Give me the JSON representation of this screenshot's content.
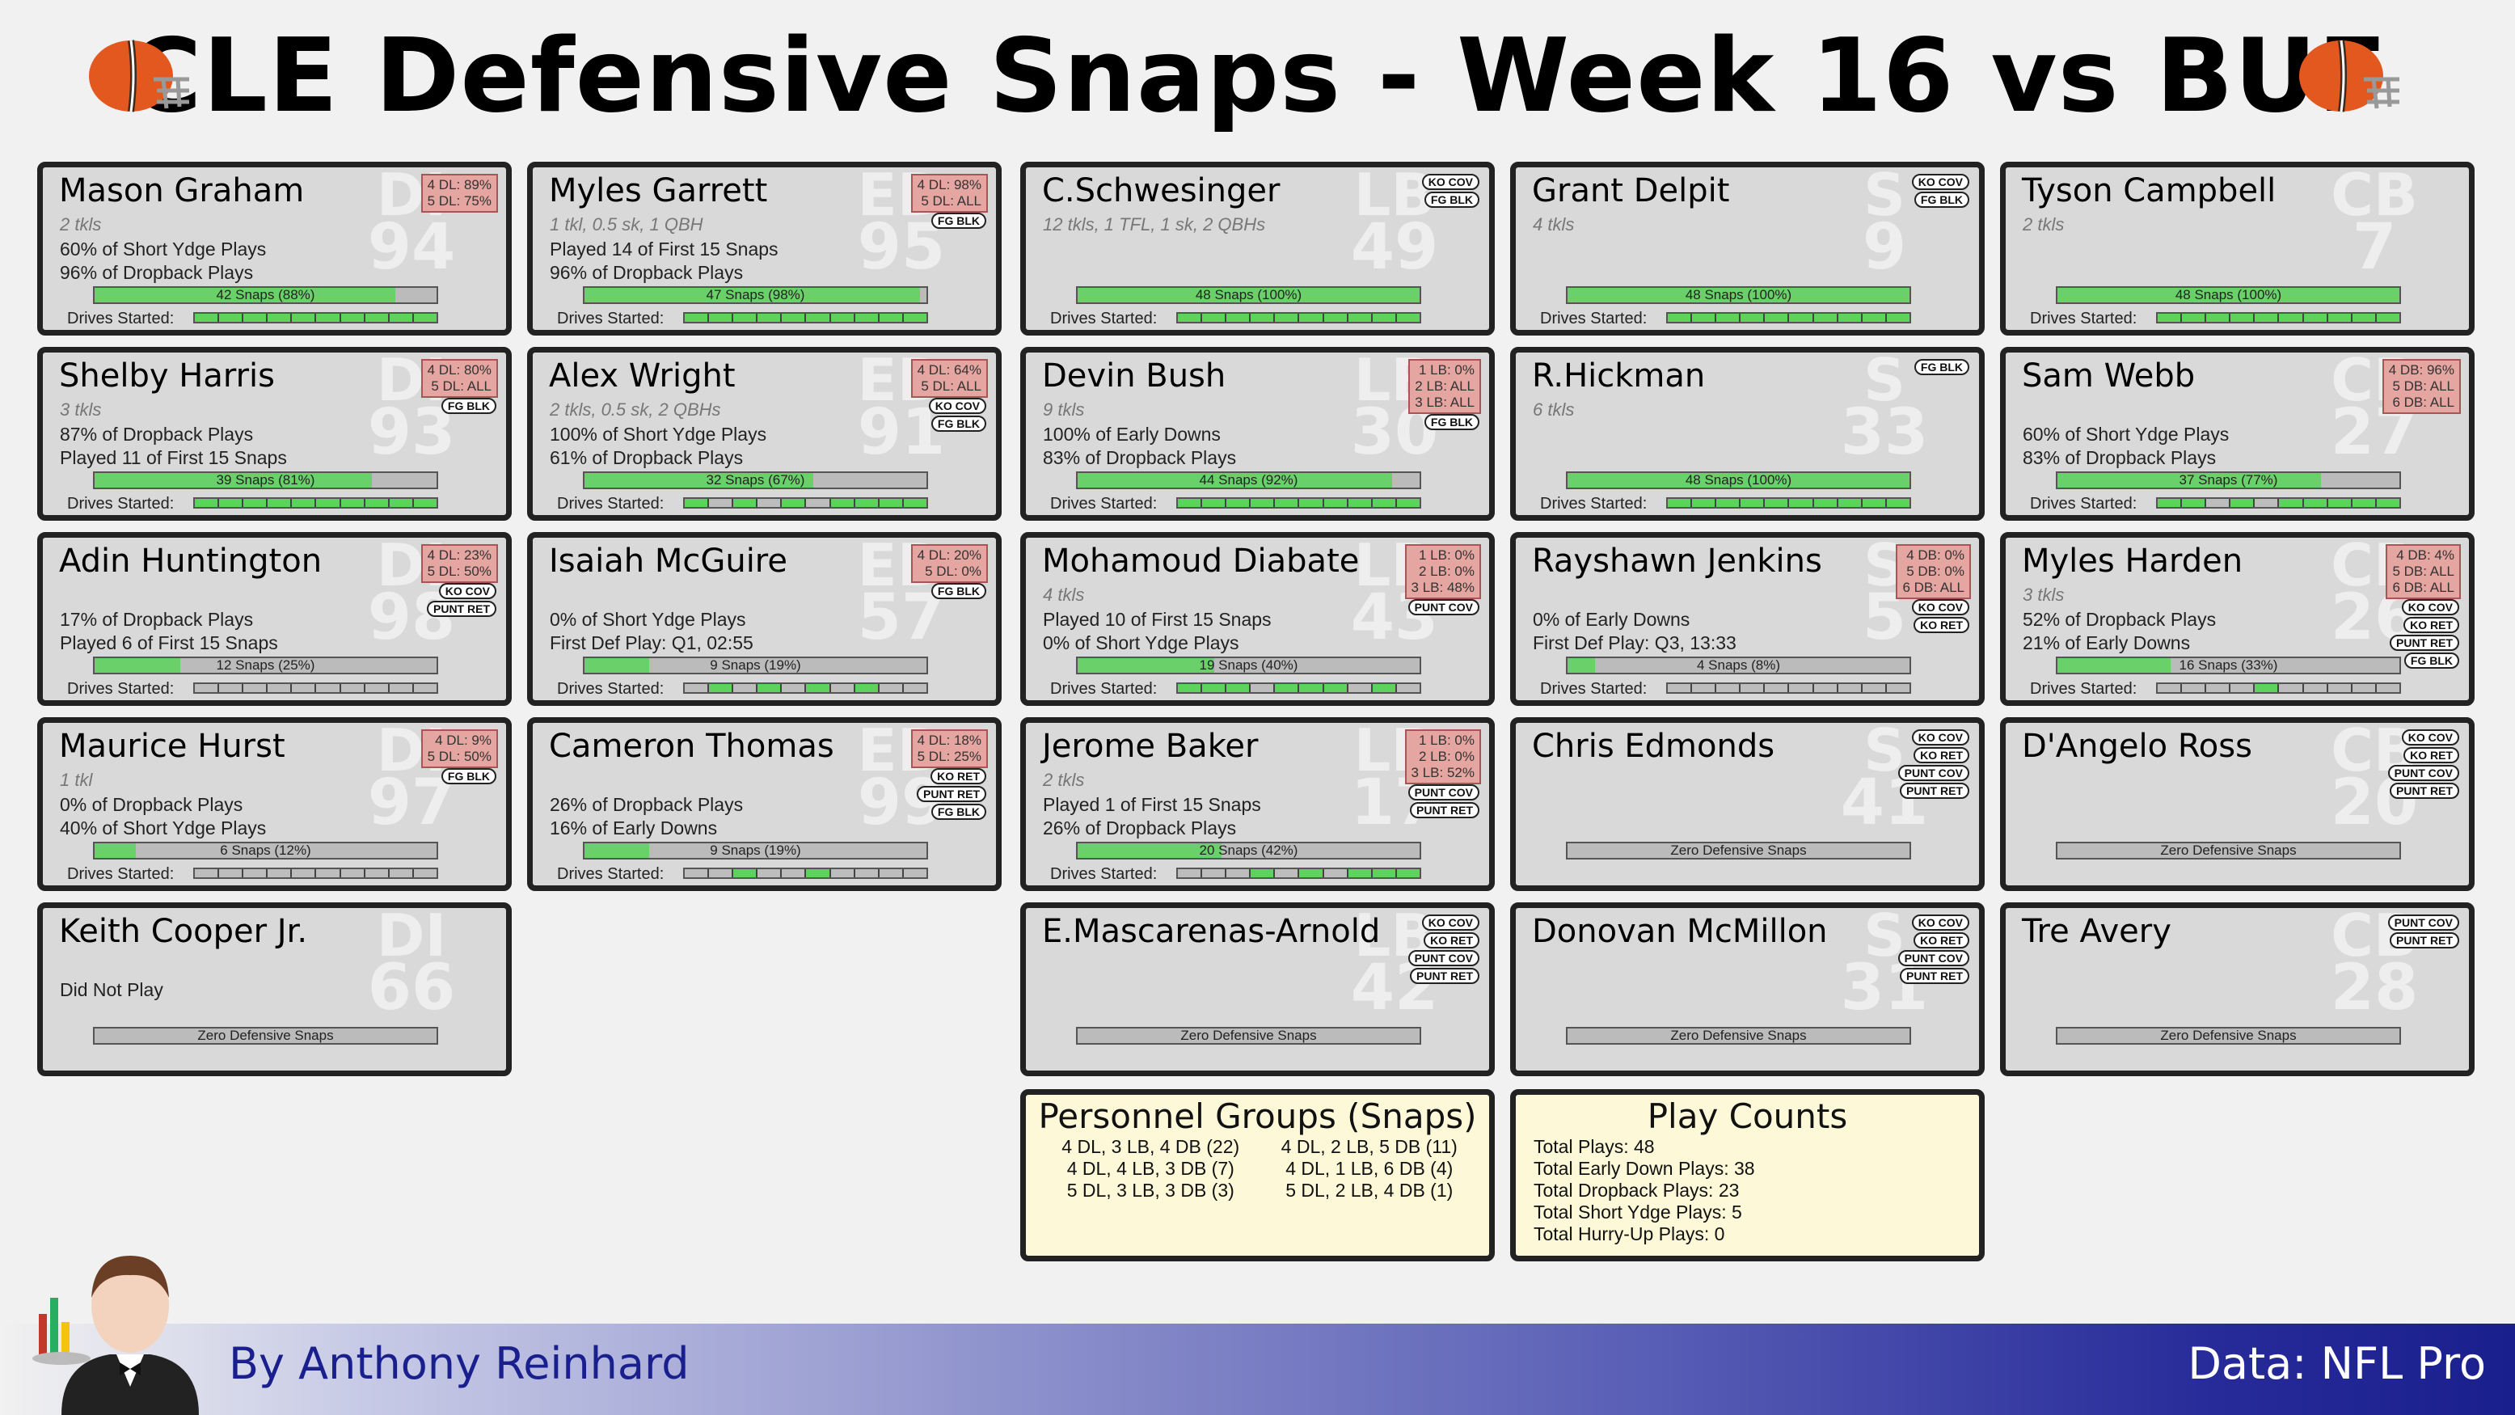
{
  "title": "CLE Defensive Snaps - Week 16 vs BUF",
  "drives_label": "Drives Started:",
  "players": [
    {
      "name": "Mason Graham",
      "pos": "DI",
      "num": "94",
      "tkls": "2 tkls",
      "line1": "60% of Short Ydge Plays",
      "line2": "96% of Dropback Plays",
      "snaps": "42 Snaps (88%)",
      "snap_pct": 88,
      "pct": [
        "4 DL: 89%",
        "5 DL: 75%"
      ],
      "badges": [],
      "drives": [
        1,
        1,
        1,
        1,
        1,
        1,
        1,
        1,
        1,
        1
      ]
    },
    {
      "name": "Myles Garrett",
      "pos": "ED",
      "num": "95",
      "tkls": "1 tkl, 0.5 sk, 1 QBH",
      "line1": "Played 14 of First 15 Snaps",
      "line2": "96% of Dropback Plays",
      "snaps": "47 Snaps (98%)",
      "snap_pct": 98,
      "pct": [
        "4 DL: 98%",
        "5 DL: ALL"
      ],
      "badges": [
        "FG BLK"
      ],
      "drives": [
        1,
        1,
        1,
        1,
        1,
        1,
        1,
        1,
        1,
        1
      ]
    },
    {
      "name": "C.Schwesinger",
      "pos": "LB",
      "num": "49",
      "tkls": "12 tkls, 1 TFL, 1 sk, 2 QBHs",
      "line1": "",
      "line2": "",
      "snaps": "48 Snaps (100%)",
      "snap_pct": 100,
      "pct": [],
      "badges": [
        "KO COV",
        "FG BLK"
      ],
      "drives": [
        1,
        1,
        1,
        1,
        1,
        1,
        1,
        1,
        1,
        1
      ]
    },
    {
      "name": "Grant Delpit",
      "pos": "S",
      "num": "9",
      "tkls": "4 tkls",
      "line1": "",
      "line2": "",
      "snaps": "48 Snaps (100%)",
      "snap_pct": 100,
      "pct": [],
      "badges": [
        "KO COV",
        "FG BLK"
      ],
      "drives": [
        1,
        1,
        1,
        1,
        1,
        1,
        1,
        1,
        1,
        1
      ]
    },
    {
      "name": "Tyson Campbell",
      "pos": "CB",
      "num": "7",
      "tkls": "2 tkls",
      "line1": "",
      "line2": "",
      "snaps": "48 Snaps (100%)",
      "snap_pct": 100,
      "pct": [],
      "badges": [],
      "drives": [
        1,
        1,
        1,
        1,
        1,
        1,
        1,
        1,
        1,
        1
      ]
    },
    {
      "name": "Shelby Harris",
      "pos": "DI",
      "num": "93",
      "tkls": "3 tkls",
      "line1": "87% of Dropback Plays",
      "line2": "Played 11 of First 15 Snaps",
      "snaps": "39 Snaps (81%)",
      "snap_pct": 81,
      "pct": [
        "4 DL: 80%",
        "5 DL: ALL"
      ],
      "badges": [
        "FG BLK"
      ],
      "drives": [
        1,
        1,
        1,
        1,
        1,
        1,
        1,
        1,
        1,
        1
      ]
    },
    {
      "name": "Alex Wright",
      "pos": "ED",
      "num": "91",
      "tkls": "2 tkls, 0.5 sk, 2 QBHs",
      "line1": "100% of Short Ydge Plays",
      "line2": "61% of Dropback Plays",
      "snaps": "32 Snaps (67%)",
      "snap_pct": 67,
      "pct": [
        "4 DL: 64%",
        "5 DL: ALL"
      ],
      "badges": [
        "KO COV",
        "FG BLK"
      ],
      "drives": [
        1,
        0,
        1,
        0,
        1,
        0,
        1,
        1,
        1,
        1
      ]
    },
    {
      "name": "Devin Bush",
      "pos": "LB",
      "num": "30",
      "tkls": "9 tkls",
      "line1": "100% of Early Downs",
      "line2": "83% of Dropback Plays",
      "snaps": "44 Snaps (92%)",
      "snap_pct": 92,
      "pct": [
        "1 LB: 0%",
        "2 LB: ALL",
        "3 LB: ALL"
      ],
      "badges": [
        "FG BLK"
      ],
      "drives": [
        1,
        1,
        1,
        1,
        1,
        1,
        1,
        1,
        1,
        1
      ]
    },
    {
      "name": "R.Hickman",
      "pos": "S",
      "num": "33",
      "tkls": "6 tkls",
      "line1": "",
      "line2": "",
      "snaps": "48 Snaps (100%)",
      "snap_pct": 100,
      "pct": [],
      "badges": [
        "FG BLK"
      ],
      "drives": [
        1,
        1,
        1,
        1,
        1,
        1,
        1,
        1,
        1,
        1
      ]
    },
    {
      "name": "Sam Webb",
      "pos": "CB",
      "num": "27",
      "tkls": "",
      "line1": "60% of Short Ydge Plays",
      "line2": "83% of Dropback Plays",
      "snaps": "37 Snaps (77%)",
      "snap_pct": 77,
      "pct": [
        "4 DB: 96%",
        "5 DB: ALL",
        "6 DB: ALL"
      ],
      "badges": [],
      "drives": [
        1,
        1,
        0,
        1,
        0,
        1,
        1,
        1,
        1,
        1
      ]
    },
    {
      "name": "Adin Huntington",
      "pos": "DI",
      "num": "98",
      "tkls": "",
      "line1": "17% of Dropback Plays",
      "line2": "Played 6 of First 15 Snaps",
      "snaps": "12 Snaps (25%)",
      "snap_pct": 25,
      "pct": [
        "4 DL: 23%",
        "5 DL: 50%"
      ],
      "badges": [
        "KO COV",
        "PUNT RET"
      ],
      "drives": [
        0,
        0,
        0,
        0,
        0,
        0,
        0,
        0,
        0,
        0
      ]
    },
    {
      "name": "Isaiah McGuire",
      "pos": "ED",
      "num": "57",
      "tkls": "",
      "line1": "0% of Short Ydge Plays",
      "line2": "First Def Play: Q1, 02:55",
      "snaps": "9 Snaps (19%)",
      "snap_pct": 19,
      "pct": [
        "4 DL: 20%",
        "5 DL: 0%"
      ],
      "badges": [
        "FG BLK"
      ],
      "drives": [
        0,
        1,
        0,
        1,
        0,
        1,
        0,
        1,
        0,
        0
      ]
    },
    {
      "name": "Mohamoud Diabate",
      "pos": "LB",
      "num": "43",
      "tkls": "4 tkls",
      "line1": "Played 10 of First 15 Snaps",
      "line2": "0% of Short Ydge Plays",
      "snaps": "19 Snaps (40%)",
      "snap_pct": 40,
      "pct": [
        "1 LB: 0%",
        "2 LB: 0%",
        "3 LB: 48%"
      ],
      "badges": [
        "PUNT COV"
      ],
      "drives": [
        1,
        1,
        1,
        0,
        1,
        1,
        1,
        0,
        1,
        0
      ]
    },
    {
      "name": "Rayshawn Jenkins",
      "pos": "S",
      "num": "5",
      "tkls": "",
      "line1": "0% of Early Downs",
      "line2": "First Def Play: Q3, 13:33",
      "snaps": "4 Snaps (8%)",
      "snap_pct": 8,
      "pct": [
        "4 DB: 0%",
        "5 DB: 0%",
        "6 DB: ALL"
      ],
      "badges": [
        "KO COV",
        "KO RET"
      ],
      "drives": [
        0,
        0,
        0,
        0,
        0,
        0,
        0,
        0,
        0,
        0
      ]
    },
    {
      "name": "Myles Harden",
      "pos": "CB",
      "num": "26",
      "tkls": "3 tkls",
      "line1": "52% of Dropback Plays",
      "line2": "21% of Early Downs",
      "snaps": "16 Snaps (33%)",
      "snap_pct": 33,
      "pct": [
        "4 DB: 4%",
        "5 DB: ALL",
        "6 DB: ALL"
      ],
      "badges": [
        "KO COV",
        "KO RET",
        "PUNT RET",
        "FG BLK"
      ],
      "drives": [
        0,
        0,
        0,
        0,
        1,
        0,
        0,
        0,
        0,
        0
      ]
    },
    {
      "name": "Maurice Hurst",
      "pos": "DI",
      "num": "97",
      "tkls": "1 tkl",
      "line1": "0% of Dropback Plays",
      "line2": "40% of Short Ydge Plays",
      "snaps": "6 Snaps (12%)",
      "snap_pct": 12,
      "pct": [
        "4 DL: 9%",
        "5 DL: 50%"
      ],
      "badges": [
        "FG BLK"
      ],
      "drives": [
        0,
        0,
        0,
        0,
        0,
        0,
        0,
        0,
        0,
        0
      ]
    },
    {
      "name": "Cameron Thomas",
      "pos": "ED",
      "num": "99",
      "tkls": "",
      "line1": "26% of Dropback Plays",
      "line2": "16% of Early Downs",
      "snaps": "9 Snaps (19%)",
      "snap_pct": 19,
      "pct": [
        "4 DL: 18%",
        "5 DL: 25%"
      ],
      "badges": [
        "KO RET",
        "PUNT RET",
        "FG BLK"
      ],
      "drives": [
        0,
        0,
        1,
        0,
        0,
        1,
        0,
        0,
        0,
        0
      ]
    },
    {
      "name": "Jerome Baker",
      "pos": "LB",
      "num": "17",
      "tkls": "2 tkls",
      "line1": "Played 1 of First 15 Snaps",
      "line2": "26% of Dropback Plays",
      "snaps": "20 Snaps (42%)",
      "snap_pct": 42,
      "pct": [
        "1 LB: 0%",
        "2 LB: 0%",
        "3 LB: 52%"
      ],
      "badges": [
        "PUNT COV",
        "PUNT RET"
      ],
      "drives": [
        0,
        0,
        0,
        1,
        0,
        1,
        0,
        1,
        1,
        1
      ]
    },
    {
      "name": "Chris Edmonds",
      "pos": "S",
      "num": "41",
      "tkls": "",
      "line1": "",
      "line2": "",
      "snaps": "Zero Defensive Snaps",
      "snap_pct": 0,
      "pct": [],
      "badges": [
        "KO COV",
        "KO RET",
        "PUNT COV",
        "PUNT RET"
      ],
      "drives": null
    },
    {
      "name": "D'Angelo Ross",
      "pos": "CB",
      "num": "20",
      "tkls": "",
      "line1": "",
      "line2": "",
      "snaps": "Zero Defensive Snaps",
      "snap_pct": 0,
      "pct": [],
      "badges": [
        "KO COV",
        "KO RET",
        "PUNT COV",
        "PUNT RET"
      ],
      "drives": null
    },
    {
      "name": "Keith Cooper Jr.",
      "pos": "DI",
      "num": "66",
      "tkls": "",
      "line1": "Did Not Play",
      "line2": "",
      "snaps": "Zero Defensive Snaps",
      "snap_pct": 0,
      "pct": [],
      "badges": [],
      "drives": null
    },
    null,
    {
      "name": "E.Mascarenas-Arnold",
      "pos": "LB",
      "num": "42",
      "tkls": "",
      "line1": "",
      "line2": "",
      "snaps": "Zero Defensive Snaps",
      "snap_pct": 0,
      "pct": [],
      "badges": [
        "KO COV",
        "KO RET",
        "PUNT COV",
        "PUNT RET"
      ],
      "drives": null
    },
    {
      "name": "Donovan McMillon",
      "pos": "S",
      "num": "31",
      "tkls": "",
      "line1": "",
      "line2": "",
      "snaps": "Zero Defensive Snaps",
      "snap_pct": 0,
      "pct": [],
      "badges": [
        "KO COV",
        "KO RET",
        "PUNT COV",
        "PUNT RET"
      ],
      "drives": null
    },
    {
      "name": "Tre Avery",
      "pos": "CB",
      "num": "28",
      "tkls": "",
      "line1": "",
      "line2": "",
      "snaps": "Zero Defensive Snaps",
      "snap_pct": 0,
      "pct": [],
      "badges": [
        "PUNT COV",
        "PUNT RET"
      ],
      "drives": null
    }
  ],
  "personnel": {
    "title": "Personnel Groups (Snaps)",
    "groups": [
      "4 DL, 3 LB, 4 DB (22)",
      "4 DL, 2 LB, 5 DB (11)",
      "4 DL, 4 LB, 3 DB (7)",
      "4 DL, 1 LB, 6 DB (4)",
      "5 DL, 3 LB, 3 DB (3)",
      "5 DL, 2 LB, 4 DB (1)"
    ]
  },
  "play_counts": {
    "title": "Play Counts",
    "items": [
      "Total Plays: 48",
      "Total Early Down Plays: 38",
      "Total Dropback Plays: 23",
      "Total Short Ydge Plays: 5",
      "Total Hurry-Up Plays: 0"
    ]
  },
  "footer": {
    "byline": "By Anthony Reinhard",
    "source": "Data: NFL Pro"
  },
  "colors": {
    "card_bg": "#d9d9d9",
    "snap_fill": "#6ad16a",
    "pct_box": "#e5a5a0",
    "info_bg": "#fdf8d8",
    "footer_dark": "#1a1f8e",
    "helmet_orange": "#e2581f"
  }
}
